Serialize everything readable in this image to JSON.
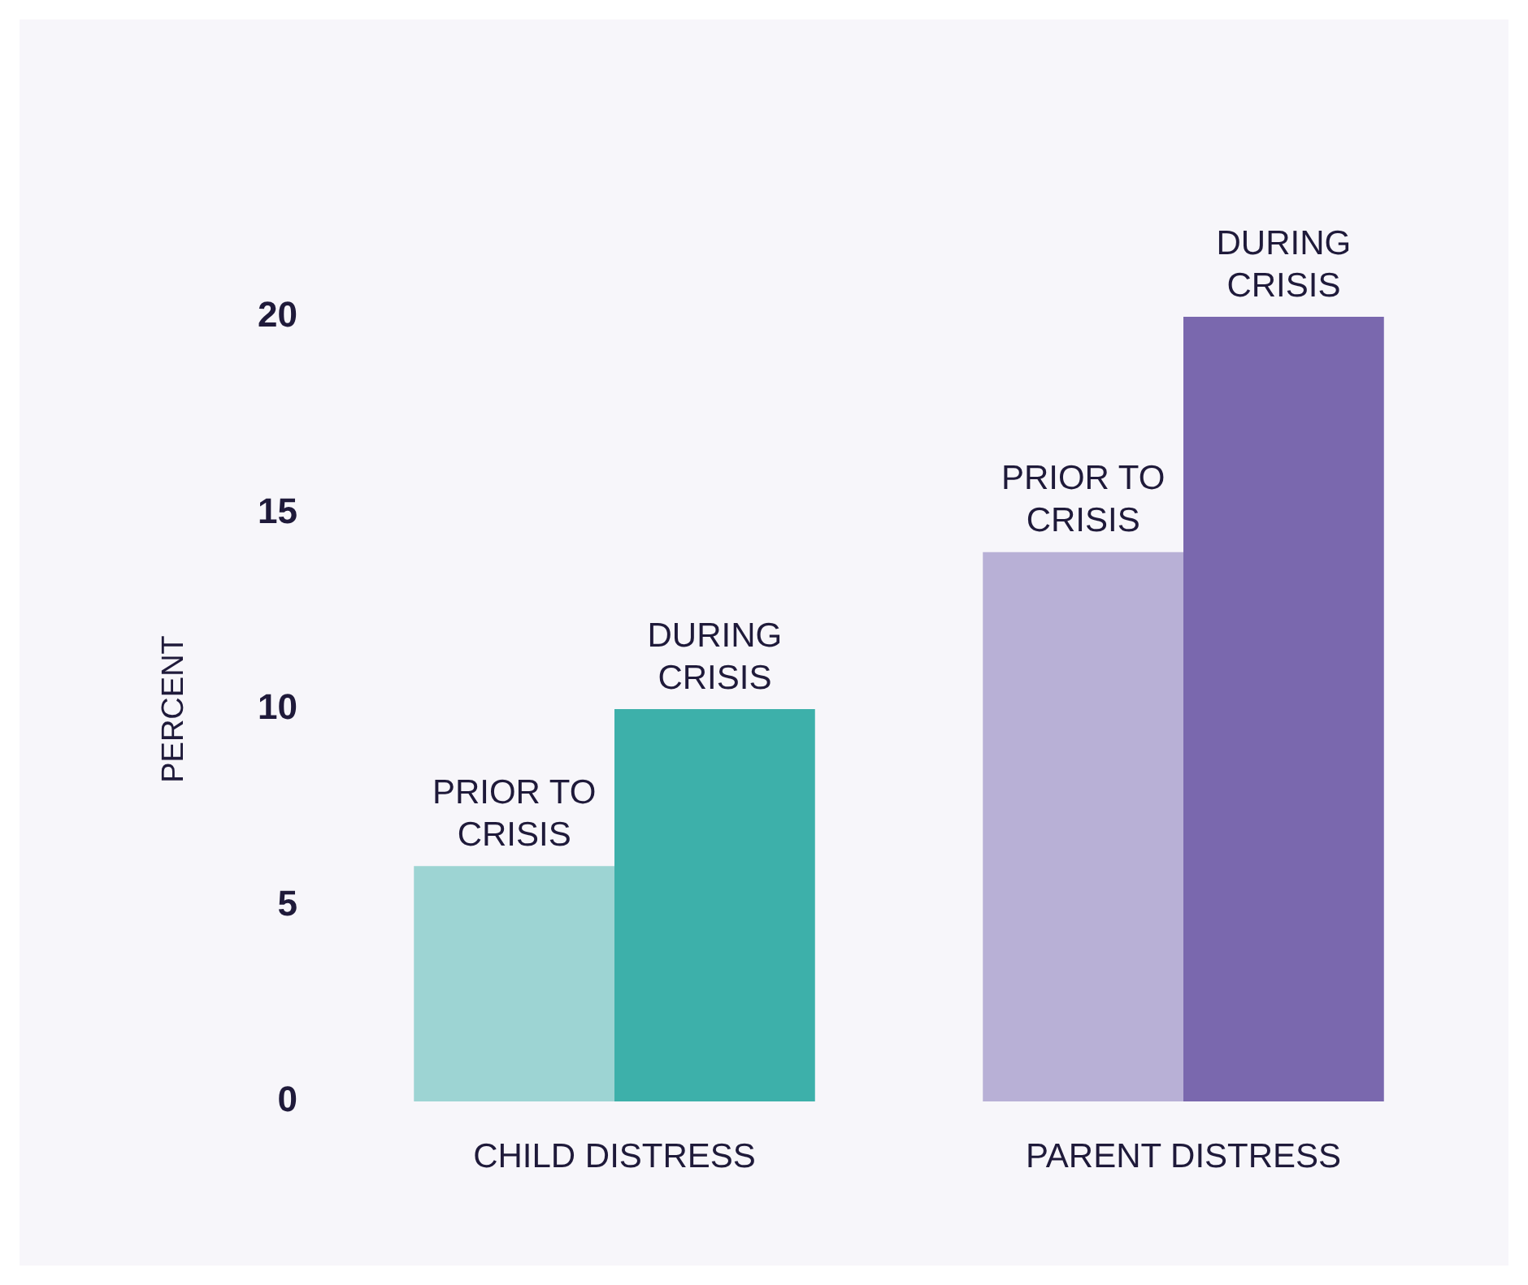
{
  "chart_data": {
    "type": "bar",
    "ylabel": "PERCENT",
    "categories": [
      "CHILD DISTRESS",
      "PARENT DISTRESS"
    ],
    "series": [
      {
        "name": "PRIOR TO CRISIS",
        "colors": [
          "#9dd4d3",
          "#b8b0d6"
        ],
        "values": [
          6,
          14
        ]
      },
      {
        "name": "DURING CRISIS",
        "colors": [
          "#3db0aa",
          "#7a68ae"
        ],
        "values": [
          10,
          20
        ]
      }
    ],
    "ylim": [
      0,
      20
    ],
    "yticks": [
      0,
      5,
      10,
      15,
      20
    ],
    "grid": false,
    "legend": false
  }
}
